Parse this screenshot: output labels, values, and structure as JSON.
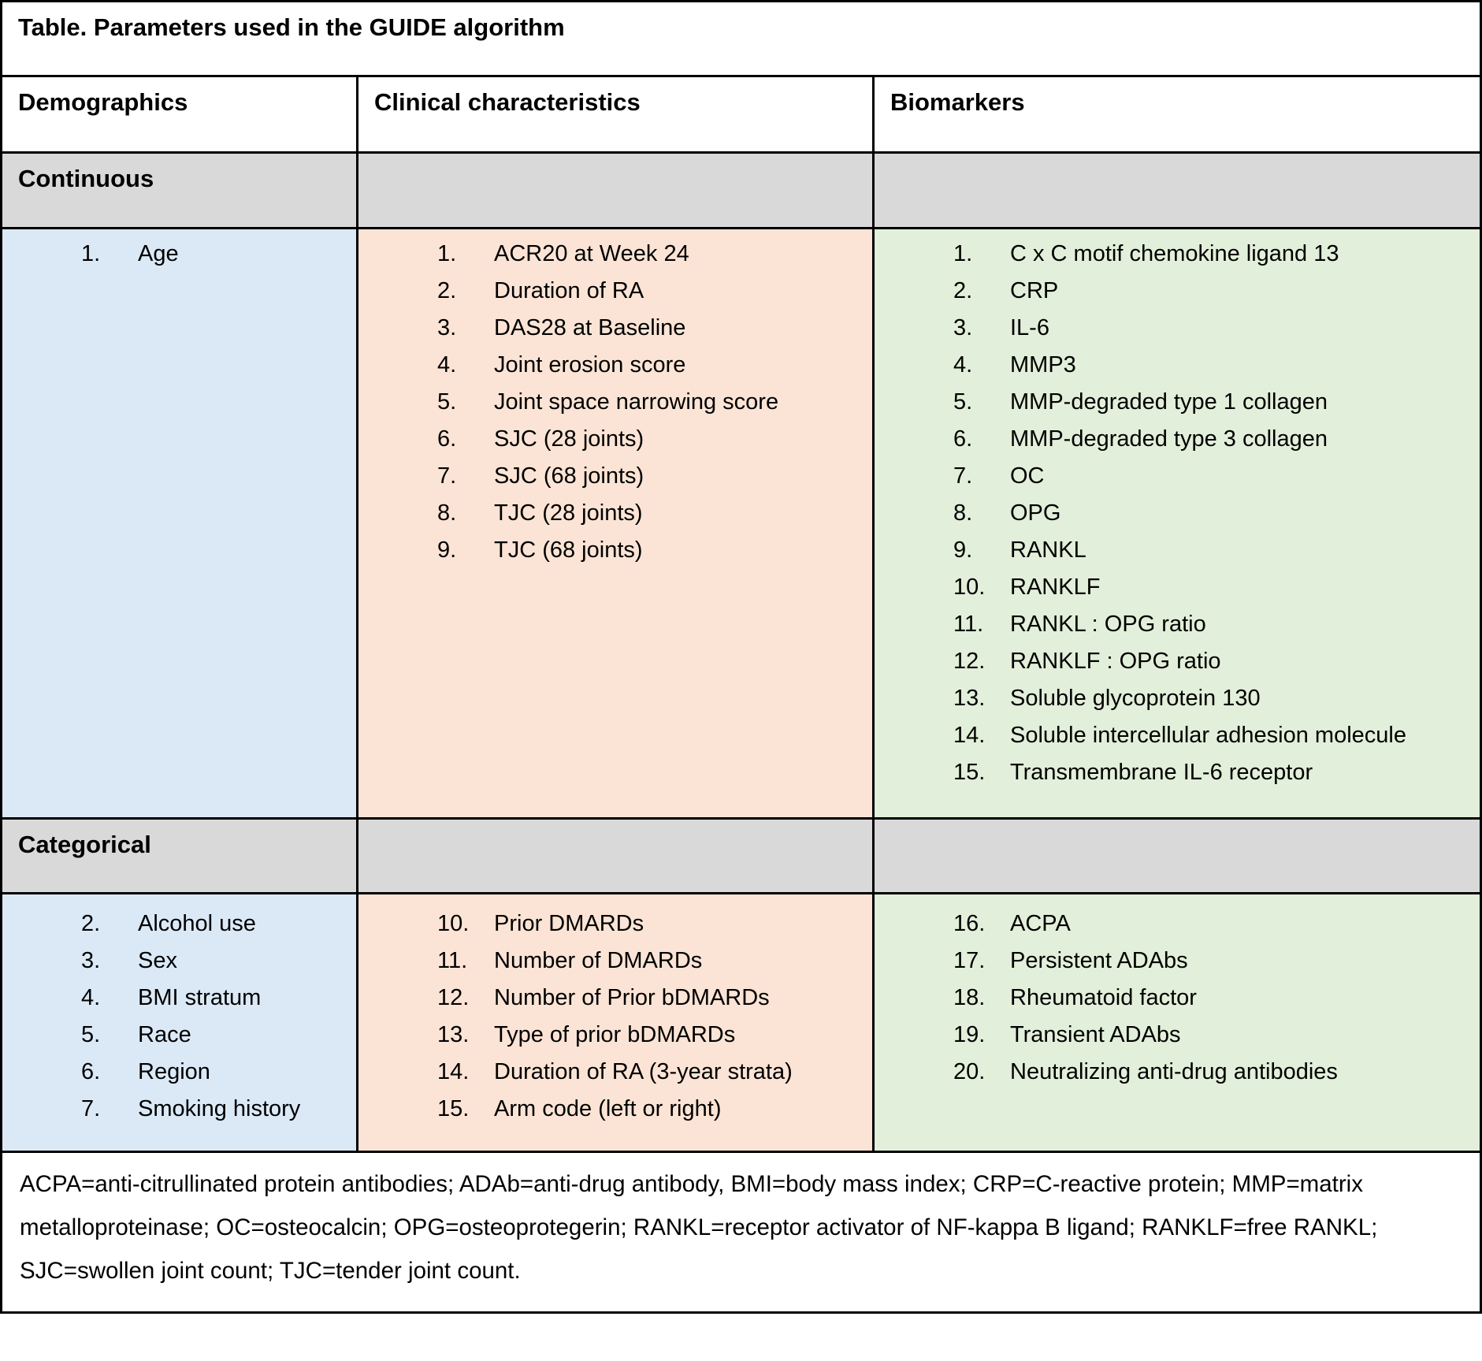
{
  "title": "Table. Parameters used in the GUIDE algorithm",
  "colors": {
    "demographics_fill": "#dbe9f7",
    "clinical_fill": "#fbe4d5",
    "biomarkers_fill": "#e2efda",
    "section_band_fill": "#d9d9d9",
    "border": "#000000"
  },
  "columns": [
    {
      "label": "Demographics"
    },
    {
      "label": "Clinical characteristics"
    },
    {
      "label": "Biomarkers"
    }
  ],
  "sections": [
    {
      "label": "Continuous",
      "cells": {
        "demographics": [
          {
            "num": "1.",
            "text": "Age"
          }
        ],
        "clinical": [
          {
            "num": "1.",
            "text": "ACR20 at Week 24"
          },
          {
            "num": "2.",
            "text": "Duration of RA"
          },
          {
            "num": "3.",
            "text": "DAS28 at Baseline"
          },
          {
            "num": "4.",
            "text": "Joint erosion score"
          },
          {
            "num": "5.",
            "text": "Joint space narrowing score"
          },
          {
            "num": "6.",
            "text": "SJC (28 joints)"
          },
          {
            "num": "7.",
            "text": "SJC (68 joints)"
          },
          {
            "num": "8.",
            "text": "TJC (28 joints)"
          },
          {
            "num": "9.",
            "text": "TJC (68 joints)"
          }
        ],
        "biomarkers": [
          {
            "num": "1.",
            "text": "C x C motif chemokine ligand 13"
          },
          {
            "num": "2.",
            "text": "CRP"
          },
          {
            "num": "3.",
            "text": "IL-6"
          },
          {
            "num": "4.",
            "text": "MMP3"
          },
          {
            "num": "5.",
            "text": "MMP-degraded type 1 collagen"
          },
          {
            "num": "6.",
            "text": "MMP-degraded type 3 collagen"
          },
          {
            "num": "7.",
            "text": "OC"
          },
          {
            "num": "8.",
            "text": "OPG"
          },
          {
            "num": "9.",
            "text": "RANKL"
          },
          {
            "num": "10.",
            "text": "RANKLF"
          },
          {
            "num": "11.",
            "text": "RANKL : OPG ratio"
          },
          {
            "num": "12.",
            "text": "RANKLF : OPG ratio"
          },
          {
            "num": "13.",
            "text": "Soluble glycoprotein 130"
          },
          {
            "num": "14.",
            "text": "Soluble intercellular adhesion molecule"
          },
          {
            "num": "15.",
            "text": "Transmembrane IL-6 receptor"
          }
        ]
      }
    },
    {
      "label": "Categorical",
      "cells": {
        "demographics": [
          {
            "num": "2.",
            "text": "Alcohol use"
          },
          {
            "num": "3.",
            "text": "Sex"
          },
          {
            "num": "4.",
            "text": "BMI stratum"
          },
          {
            "num": "5.",
            "text": "Race"
          },
          {
            "num": "6.",
            "text": "Region"
          },
          {
            "num": "7.",
            "text": "Smoking history"
          }
        ],
        "clinical": [
          {
            "num": "10.",
            "text": "Prior DMARDs"
          },
          {
            "num": "11.",
            "text": "Number of DMARDs"
          },
          {
            "num": "12.",
            "text": "Number of Prior bDMARDs"
          },
          {
            "num": "13.",
            "text": "Type of prior bDMARDs"
          },
          {
            "num": "14.",
            "text": "Duration of RA (3-year strata)"
          },
          {
            "num": "15.",
            "text": "Arm code (left or right)"
          }
        ],
        "biomarkers": [
          {
            "num": "16.",
            "text": "ACPA"
          },
          {
            "num": "17.",
            "text": "Persistent ADAbs"
          },
          {
            "num": "18.",
            "text": "Rheumatoid factor"
          },
          {
            "num": "19.",
            "text": "Transient ADAbs"
          },
          {
            "num": "20.",
            "text": "Neutralizing anti-drug antibodies"
          }
        ]
      }
    }
  ],
  "footnote": "ACPA=anti-citrullinated protein antibodies; ADAb=anti-drug antibody, BMI=body mass index; CRP=C-reactive protein; MMP=matrix metalloproteinase; OC=osteocalcin; OPG=osteoprotegerin; RANKL=receptor activator of NF-kappa B ligand; RANKLF=free RANKL; SJC=swollen joint count; TJC=tender joint count."
}
